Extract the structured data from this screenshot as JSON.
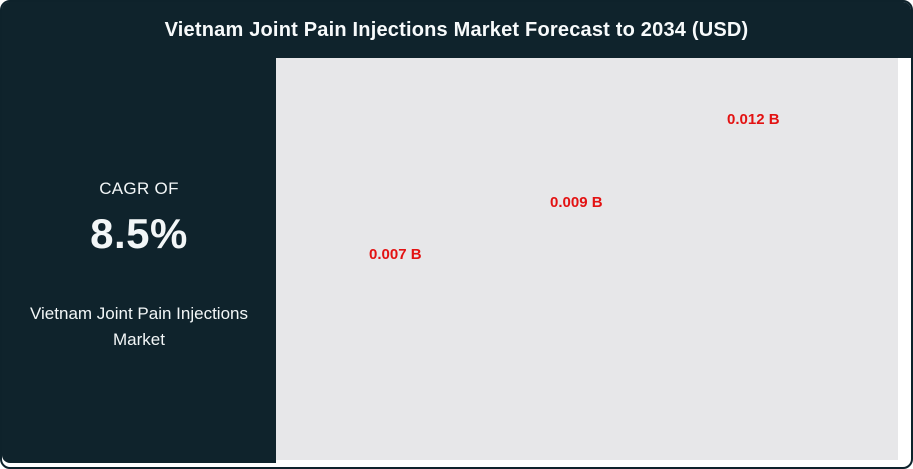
{
  "header": {
    "title": "Vietnam Joint Pain Injections Market Forecast to 2034 (USD)"
  },
  "sidebar": {
    "cagr_label": "CAGR OF",
    "cagr_value": "8.5%",
    "market_name": "Vietnam Joint Pain Injections Market"
  },
  "chart_data": {
    "type": "bar",
    "title": "Vietnam Joint Pain Injections Market Forecast to 2034 (USD)",
    "unit": "USD billions",
    "values": [
      0.007,
      0.009,
      0.012
    ],
    "data_labels": [
      "0.007 B",
      "0.009 B",
      "0.012 B"
    ],
    "annotations": {
      "cagr": "8.5%"
    },
    "layout_hints": {
      "bars_visible": false,
      "axes_visible": false,
      "grid": "off",
      "legend": "none",
      "note": "only ascending red data labels are rendered on a plain light-gray plot area",
      "label_color": "#e31212",
      "plot_background": "#e7e7e9"
    }
  },
  "colors": {
    "panel_dark": "#0f232c",
    "chart_background": "#e7e7e9",
    "accent_red": "#e31212",
    "text_light": "#f2f6f7",
    "card_background": "#ffffff"
  }
}
